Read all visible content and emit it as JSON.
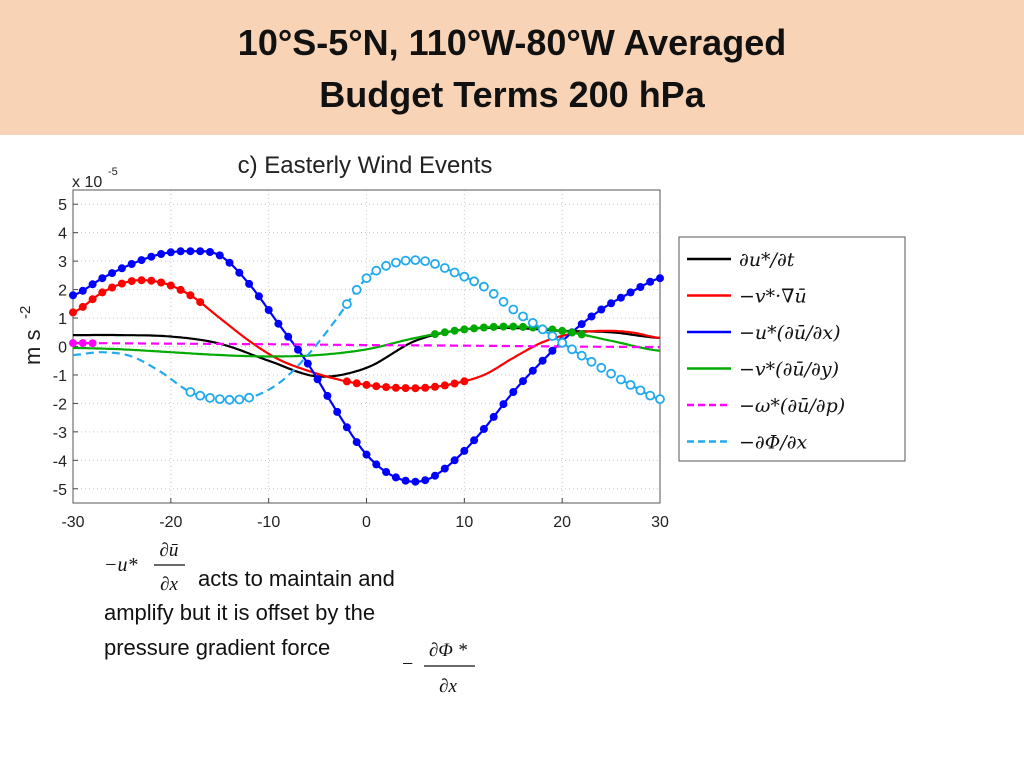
{
  "slide": {
    "title_line1": "10°S-5°N, 110°W-80°W Averaged",
    "title_line2": "Budget Terms 200 hPa",
    "caption_line1": "acts to maintain and",
    "caption_line2": "amplify but it is offset by the",
    "caption_line3": "pressure gradient force",
    "formula1": {
      "lead": "−u*",
      "numerator": "∂ū",
      "denominator": "∂x"
    },
    "formula2": {
      "lead": "−",
      "numerator": "∂Φ *",
      "denominator": "∂x"
    }
  },
  "chart_data": {
    "type": "line",
    "title": "c) Easterly Wind Events",
    "ylabel": "m s",
    "ylabel_exp": "-2",
    "multiplier_base": "x 10",
    "multiplier_exp": "-5",
    "xlim": [
      -30,
      30
    ],
    "ylim": [
      -5.5,
      5.5
    ],
    "xticks": [
      "-30",
      "-20",
      "-10",
      "0",
      "10",
      "20",
      "30"
    ],
    "yticks": [
      "5",
      "4",
      "3",
      "2",
      "1",
      "0",
      "-1",
      "-2",
      "-3",
      "-4",
      "-5"
    ],
    "grid": true,
    "legend_position": "right, outside",
    "series": [
      {
        "name": "∂u*/∂t",
        "color": "#000000",
        "marker": "none",
        "dash": "solid",
        "x": [
          -30,
          -25,
          -20,
          -15,
          -10,
          -5,
          0,
          5,
          10,
          15,
          20,
          25,
          30
        ],
        "y": [
          0.4,
          0.4,
          0.35,
          0.1,
          -0.5,
          -1.05,
          -0.75,
          0.2,
          0.6,
          0.65,
          0.55,
          0.5,
          0.3
        ]
      },
      {
        "name": "−v*·∇ū",
        "color": "#ff0000",
        "marker": "filled",
        "marker_xlim": [
          -30,
          -17
        ],
        "marker_xlim2": [
          -2,
          10
        ],
        "dash": "solid",
        "x": [
          -30,
          -27,
          -24,
          -21,
          -18,
          -15,
          -12,
          -9,
          -6,
          -3,
          0,
          3,
          6,
          9,
          12,
          15,
          18,
          21,
          24,
          27,
          30
        ],
        "y": [
          1.2,
          1.9,
          2.3,
          2.25,
          1.8,
          1.0,
          0.2,
          -0.45,
          -0.85,
          -1.15,
          -1.35,
          -1.45,
          -1.45,
          -1.3,
          -1.0,
          -0.4,
          0.15,
          0.45,
          0.55,
          0.5,
          0.3
        ]
      },
      {
        "name": "−u*(∂ū/∂x)",
        "color": "#0000ff",
        "marker": "filled",
        "dash": "solid",
        "x": [
          -30,
          -27,
          -24,
          -21,
          -18,
          -15,
          -12,
          -9,
          -6,
          -3,
          0,
          3,
          6,
          9,
          12,
          15,
          18,
          21,
          24,
          27,
          30
        ],
        "y": [
          1.8,
          2.4,
          2.9,
          3.25,
          3.35,
          3.2,
          2.2,
          0.8,
          -0.6,
          -2.3,
          -3.8,
          -4.6,
          -4.7,
          -4.0,
          -2.9,
          -1.6,
          -0.5,
          0.5,
          1.3,
          1.9,
          2.4
        ]
      },
      {
        "name": "−v*(∂ū/∂y)",
        "color": "#00aa00",
        "marker": "filled",
        "marker_xlim": [
          7,
          22
        ],
        "dash": "solid",
        "x": [
          -30,
          -25,
          -20,
          -15,
          -10,
          -5,
          0,
          5,
          10,
          15,
          20,
          25,
          30
        ],
        "y": [
          -0.05,
          -0.1,
          -0.2,
          -0.3,
          -0.35,
          -0.3,
          -0.1,
          0.3,
          0.6,
          0.7,
          0.55,
          0.2,
          -0.15
        ]
      },
      {
        "name": "−ω*(∂ū/∂p)",
        "color": "#ff00ff",
        "marker": "filled",
        "marker_xlim": [
          -30,
          -28
        ],
        "dash": "dashed",
        "x": [
          -30,
          -20,
          -10,
          0,
          10,
          20,
          30
        ],
        "y": [
          0.12,
          0.1,
          0.08,
          0.05,
          0.03,
          0.0,
          -0.02
        ]
      },
      {
        "name": "−∂Φ/∂x",
        "color": "#22aaee",
        "marker": "open",
        "marker_xlim": [
          -18,
          -12
        ],
        "marker_xlim2": [
          -2,
          30
        ],
        "dash": "dashed",
        "x": [
          -30,
          -27,
          -24,
          -21,
          -18,
          -15,
          -12,
          -9,
          -6,
          -3,
          0,
          3,
          6,
          9,
          12,
          15,
          18,
          21,
          24,
          27,
          30
        ],
        "y": [
          -0.3,
          -0.2,
          -0.35,
          -0.9,
          -1.6,
          -1.85,
          -1.8,
          -1.3,
          -0.3,
          1.0,
          2.4,
          2.95,
          3.0,
          2.6,
          2.1,
          1.3,
          0.6,
          -0.1,
          -0.75,
          -1.35,
          -1.85
        ]
      }
    ]
  }
}
